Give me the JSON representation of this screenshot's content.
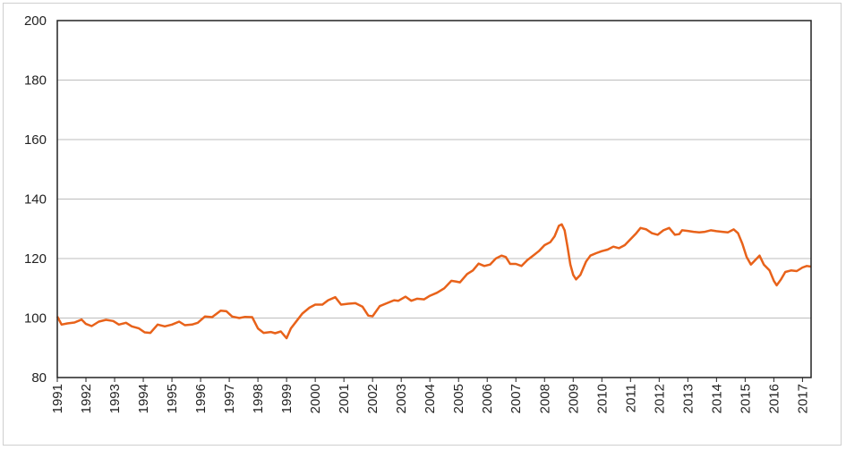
{
  "chart_data": {
    "type": "line",
    "title": "",
    "xlabel": "",
    "ylabel": "",
    "ylim": [
      80,
      200
    ],
    "xlim": [
      1991,
      2017.3
    ],
    "grid": true,
    "y_ticks": [
      80,
      100,
      120,
      140,
      160,
      180,
      200
    ],
    "x_tick_labels": [
      "1991",
      "1992",
      "1993",
      "1994",
      "1995",
      "1996",
      "1997",
      "1998",
      "1999",
      "2000",
      "2001",
      "2002",
      "2003",
      "2004",
      "2005",
      "2006",
      "2007",
      "2008",
      "2009",
      "2010",
      "2011",
      "2012",
      "2013",
      "2014",
      "2015",
      "2016",
      "2017"
    ],
    "series": [
      {
        "color": "#e8621a",
        "points": [
          [
            1991.0,
            100.5
          ],
          [
            1991.15,
            97.8
          ],
          [
            1991.35,
            98.2
          ],
          [
            1991.6,
            98.5
          ],
          [
            1991.85,
            99.5
          ],
          [
            1992.0,
            98.0
          ],
          [
            1992.2,
            97.3
          ],
          [
            1992.45,
            98.8
          ],
          [
            1992.7,
            99.4
          ],
          [
            1992.95,
            99.0
          ],
          [
            1993.15,
            97.8
          ],
          [
            1993.4,
            98.4
          ],
          [
            1993.6,
            97.2
          ],
          [
            1993.85,
            96.5
          ],
          [
            1994.05,
            95.2
          ],
          [
            1994.25,
            95.0
          ],
          [
            1994.5,
            97.8
          ],
          [
            1994.75,
            97.2
          ],
          [
            1995.0,
            97.8
          ],
          [
            1995.25,
            98.8
          ],
          [
            1995.45,
            97.6
          ],
          [
            1995.7,
            97.8
          ],
          [
            1995.9,
            98.4
          ],
          [
            1996.15,
            100.5
          ],
          [
            1996.4,
            100.3
          ],
          [
            1996.7,
            102.5
          ],
          [
            1996.9,
            102.3
          ],
          [
            1997.1,
            100.5
          ],
          [
            1997.35,
            100.0
          ],
          [
            1997.55,
            100.4
          ],
          [
            1997.8,
            100.3
          ],
          [
            1998.0,
            96.5
          ],
          [
            1998.2,
            95.0
          ],
          [
            1998.45,
            95.3
          ],
          [
            1998.6,
            94.9
          ],
          [
            1998.8,
            95.5
          ],
          [
            1999.0,
            93.2
          ],
          [
            1999.15,
            96.5
          ],
          [
            1999.35,
            99.0
          ],
          [
            1999.55,
            101.5
          ],
          [
            1999.8,
            103.5
          ],
          [
            2000.0,
            104.5
          ],
          [
            2000.25,
            104.5
          ],
          [
            2000.45,
            106.0
          ],
          [
            2000.7,
            107.0
          ],
          [
            2000.9,
            104.5
          ],
          [
            2001.15,
            104.8
          ],
          [
            2001.4,
            105.0
          ],
          [
            2001.65,
            103.8
          ],
          [
            2001.85,
            100.8
          ],
          [
            2002.0,
            100.6
          ],
          [
            2002.25,
            104.0
          ],
          [
            2002.5,
            105.0
          ],
          [
            2002.75,
            106.0
          ],
          [
            2002.9,
            105.8
          ],
          [
            2003.15,
            107.2
          ],
          [
            2003.35,
            105.8
          ],
          [
            2003.55,
            106.5
          ],
          [
            2003.8,
            106.3
          ],
          [
            2004.0,
            107.5
          ],
          [
            2004.25,
            108.5
          ],
          [
            2004.5,
            110.0
          ],
          [
            2004.75,
            112.5
          ],
          [
            2004.9,
            112.3
          ],
          [
            2005.05,
            112.0
          ],
          [
            2005.3,
            114.8
          ],
          [
            2005.5,
            116.0
          ],
          [
            2005.7,
            118.3
          ],
          [
            2005.9,
            117.5
          ],
          [
            2006.1,
            118.0
          ],
          [
            2006.3,
            120.0
          ],
          [
            2006.5,
            121.0
          ],
          [
            2006.65,
            120.5
          ],
          [
            2006.8,
            118.2
          ],
          [
            2007.0,
            118.2
          ],
          [
            2007.2,
            117.5
          ],
          [
            2007.4,
            119.5
          ],
          [
            2007.6,
            121.0
          ],
          [
            2007.8,
            122.5
          ],
          [
            2008.0,
            124.5
          ],
          [
            2008.2,
            125.5
          ],
          [
            2008.35,
            127.5
          ],
          [
            2008.5,
            131.0
          ],
          [
            2008.6,
            131.5
          ],
          [
            2008.7,
            129.5
          ],
          [
            2008.8,
            124.0
          ],
          [
            2008.9,
            118.0
          ],
          [
            2009.0,
            114.5
          ],
          [
            2009.1,
            113.0
          ],
          [
            2009.25,
            114.5
          ],
          [
            2009.45,
            119.0
          ],
          [
            2009.6,
            121.0
          ],
          [
            2009.8,
            121.8
          ],
          [
            2010.0,
            122.5
          ],
          [
            2010.2,
            123.0
          ],
          [
            2010.4,
            124.0
          ],
          [
            2010.6,
            123.5
          ],
          [
            2010.8,
            124.5
          ],
          [
            2011.0,
            126.5
          ],
          [
            2011.2,
            128.5
          ],
          [
            2011.35,
            130.3
          ],
          [
            2011.55,
            129.8
          ],
          [
            2011.75,
            128.5
          ],
          [
            2011.95,
            128.0
          ],
          [
            2012.15,
            129.5
          ],
          [
            2012.35,
            130.3
          ],
          [
            2012.55,
            128.0
          ],
          [
            2012.7,
            128.2
          ],
          [
            2012.8,
            129.5
          ],
          [
            2013.0,
            129.3
          ],
          [
            2013.2,
            129.0
          ],
          [
            2013.4,
            128.8
          ],
          [
            2013.6,
            129.0
          ],
          [
            2013.8,
            129.5
          ],
          [
            2014.0,
            129.2
          ],
          [
            2014.2,
            129.0
          ],
          [
            2014.4,
            128.8
          ],
          [
            2014.6,
            129.8
          ],
          [
            2014.75,
            128.5
          ],
          [
            2014.9,
            125.0
          ],
          [
            2015.05,
            120.5
          ],
          [
            2015.2,
            118.0
          ],
          [
            2015.35,
            119.5
          ],
          [
            2015.5,
            121.0
          ],
          [
            2015.65,
            118.0
          ],
          [
            2015.85,
            116.0
          ],
          [
            2016.0,
            112.5
          ],
          [
            2016.1,
            111.0
          ],
          [
            2016.25,
            113.0
          ],
          [
            2016.4,
            115.5
          ],
          [
            2016.6,
            116.0
          ],
          [
            2016.8,
            115.8
          ],
          [
            2017.0,
            117.0
          ],
          [
            2017.15,
            117.5
          ],
          [
            2017.3,
            117.3
          ]
        ]
      }
    ]
  }
}
